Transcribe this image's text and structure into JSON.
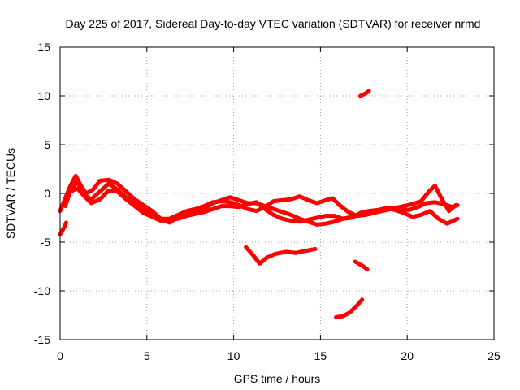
{
  "chart_data": {
    "type": "scatter",
    "title": "Day 225 of 2017, Sidereal Day-to-day VTEC variation (SDTVAR) for receiver nrmd",
    "xlabel": "GPS time / hours",
    "ylabel": "SDTVAR / TECUs",
    "xlim": [
      0,
      25
    ],
    "ylim": [
      -15,
      15
    ],
    "xticks": [
      0,
      5,
      10,
      15,
      20,
      25
    ],
    "yticks": [
      -15,
      -10,
      -5,
      0,
      5,
      10,
      15
    ],
    "grid": true,
    "series_color": "#ff0000",
    "series": [
      {
        "name": "track-1",
        "points": [
          [
            0.0,
            -1.8
          ],
          [
            0.3,
            -0.5
          ],
          [
            0.6,
            0.8
          ],
          [
            0.9,
            1.8
          ],
          [
            1.2,
            0.8
          ],
          [
            1.5,
            0.0
          ],
          [
            1.9,
            0.4
          ],
          [
            2.3,
            1.3
          ],
          [
            2.8,
            1.4
          ],
          [
            3.3,
            1.0
          ],
          [
            3.8,
            0.2
          ],
          [
            4.3,
            -0.6
          ],
          [
            4.8,
            -1.2
          ],
          [
            5.3,
            -1.8
          ],
          [
            5.8,
            -2.6
          ],
          [
            6.3,
            -3.0
          ],
          [
            6.8,
            -2.4
          ],
          [
            7.3,
            -2.0
          ],
          [
            7.8,
            -2.0
          ],
          [
            8.3,
            -1.6
          ],
          [
            8.8,
            -1.0
          ],
          [
            9.3,
            -0.7
          ],
          [
            9.8,
            -0.4
          ],
          [
            10.3,
            -0.7
          ],
          [
            10.8,
            -1.0
          ],
          [
            11.3,
            -1.0
          ],
          [
            11.8,
            -1.3
          ],
          [
            12.3,
            -1.6
          ],
          [
            12.8,
            -1.9
          ],
          [
            13.3,
            -2.2
          ],
          [
            13.8,
            -2.6
          ],
          [
            14.3,
            -2.9
          ],
          [
            14.8,
            -3.2
          ],
          [
            15.3,
            -3.1
          ],
          [
            15.8,
            -2.9
          ],
          [
            16.3,
            -2.6
          ],
          [
            16.8,
            -2.4
          ],
          [
            17.3,
            -2.2
          ],
          [
            17.8,
            -2.1
          ],
          [
            18.3,
            -1.9
          ],
          [
            18.8,
            -1.7
          ],
          [
            19.3,
            -1.5
          ],
          [
            19.8,
            -1.3
          ],
          [
            20.3,
            -1.1
          ],
          [
            20.8,
            -0.8
          ],
          [
            21.3,
            0.3
          ],
          [
            21.6,
            0.8
          ],
          [
            22.0,
            -0.6
          ],
          [
            22.4,
            -1.8
          ],
          [
            22.8,
            -1.2
          ]
        ]
      },
      {
        "name": "track-2",
        "points": [
          [
            0.3,
            -1.3
          ],
          [
            0.6,
            0.3
          ],
          [
            1.0,
            1.2
          ],
          [
            1.4,
            -0.2
          ],
          [
            1.8,
            -0.6
          ],
          [
            2.3,
            0.2
          ],
          [
            2.8,
            1.0
          ],
          [
            3.3,
            0.4
          ],
          [
            3.8,
            -0.4
          ],
          [
            4.3,
            -1.0
          ],
          [
            4.8,
            -1.6
          ],
          [
            5.3,
            -2.2
          ],
          [
            5.8,
            -2.6
          ],
          [
            6.3,
            -2.6
          ],
          [
            6.8,
            -2.2
          ],
          [
            7.3,
            -1.8
          ],
          [
            7.8,
            -1.6
          ],
          [
            8.3,
            -1.3
          ],
          [
            8.8,
            -0.9
          ],
          [
            9.3,
            -0.8
          ],
          [
            9.8,
            -0.9
          ],
          [
            10.3,
            -1.2
          ],
          [
            10.8,
            -1.6
          ],
          [
            11.3,
            -1.8
          ],
          [
            11.8,
            -1.4
          ],
          [
            12.3,
            -0.8
          ],
          [
            12.8,
            -0.7
          ],
          [
            13.3,
            -0.6
          ],
          [
            13.8,
            -0.3
          ],
          [
            14.3,
            -0.7
          ],
          [
            14.8,
            -1.0
          ],
          [
            15.3,
            -0.7
          ],
          [
            15.7,
            -0.5
          ],
          [
            16.1,
            -1.2
          ],
          [
            16.6,
            -1.9
          ],
          [
            17.1,
            -2.3
          ],
          [
            17.6,
            -2.2
          ],
          [
            18.1,
            -2.0
          ],
          [
            18.6,
            -1.7
          ],
          [
            19.1,
            -1.5
          ],
          [
            19.6,
            -1.6
          ],
          [
            20.1,
            -1.7
          ],
          [
            20.6,
            -1.4
          ],
          [
            21.1,
            -1.0
          ],
          [
            21.6,
            -0.9
          ],
          [
            22.1,
            -1.1
          ],
          [
            22.6,
            -1.4
          ],
          [
            22.9,
            -1.2
          ]
        ]
      },
      {
        "name": "track-3",
        "points": [
          [
            0.6,
            0.2
          ],
          [
            1.0,
            0.5
          ],
          [
            1.4,
            -0.3
          ],
          [
            1.8,
            -1.0
          ],
          [
            2.3,
            -0.6
          ],
          [
            2.8,
            0.3
          ],
          [
            3.3,
            0.2
          ],
          [
            3.8,
            -0.6
          ],
          [
            4.3,
            -1.3
          ],
          [
            4.8,
            -2.0
          ],
          [
            5.3,
            -2.4
          ],
          [
            5.8,
            -2.8
          ],
          [
            6.3,
            -2.7
          ],
          [
            6.8,
            -2.6
          ],
          [
            7.3,
            -2.3
          ],
          [
            7.8,
            -2.1
          ],
          [
            8.3,
            -1.9
          ],
          [
            8.8,
            -1.6
          ],
          [
            9.3,
            -1.3
          ],
          [
            9.8,
            -1.3
          ],
          [
            10.3,
            -1.4
          ],
          [
            10.8,
            -1.1
          ],
          [
            11.3,
            -0.9
          ],
          [
            11.8,
            -1.6
          ],
          [
            12.3,
            -2.2
          ],
          [
            12.8,
            -2.6
          ],
          [
            13.3,
            -2.8
          ],
          [
            13.8,
            -2.9
          ],
          [
            14.3,
            -2.7
          ],
          [
            14.8,
            -2.5
          ],
          [
            15.3,
            -2.3
          ],
          [
            15.8,
            -2.3
          ],
          [
            16.3,
            -2.6
          ],
          [
            16.8,
            -2.5
          ],
          [
            17.3,
            -2.0
          ],
          [
            17.8,
            -1.8
          ],
          [
            18.3,
            -1.7
          ],
          [
            18.8,
            -1.5
          ],
          [
            19.3,
            -1.7
          ],
          [
            19.8,
            -2.0
          ],
          [
            20.3,
            -2.4
          ],
          [
            20.8,
            -2.2
          ],
          [
            21.3,
            -1.8
          ],
          [
            21.8,
            -2.6
          ],
          [
            22.3,
            -3.1
          ],
          [
            22.9,
            -2.6
          ]
        ]
      },
      {
        "name": "segment-a",
        "points": [
          [
            0.0,
            -4.2
          ],
          [
            0.2,
            -3.6
          ],
          [
            0.35,
            -3.0
          ]
        ]
      },
      {
        "name": "segment-b",
        "points": [
          [
            10.7,
            -5.5
          ],
          [
            11.1,
            -6.3
          ],
          [
            11.5,
            -7.2
          ],
          [
            11.9,
            -6.6
          ],
          [
            12.4,
            -6.2
          ],
          [
            13.0,
            -6.0
          ],
          [
            13.6,
            -6.1
          ],
          [
            14.1,
            -5.9
          ],
          [
            14.7,
            -5.7
          ]
        ]
      },
      {
        "name": "segment-c",
        "points": [
          [
            15.9,
            -12.7
          ],
          [
            16.3,
            -12.6
          ],
          [
            16.7,
            -12.2
          ],
          [
            17.1,
            -11.5
          ],
          [
            17.4,
            -10.9
          ]
        ]
      },
      {
        "name": "segment-d",
        "points": [
          [
            17.0,
            -7.0
          ],
          [
            17.4,
            -7.4
          ],
          [
            17.7,
            -7.8
          ]
        ]
      },
      {
        "name": "segment-e",
        "points": [
          [
            17.3,
            10.0
          ],
          [
            17.55,
            10.2
          ],
          [
            17.8,
            10.5
          ]
        ]
      }
    ]
  }
}
